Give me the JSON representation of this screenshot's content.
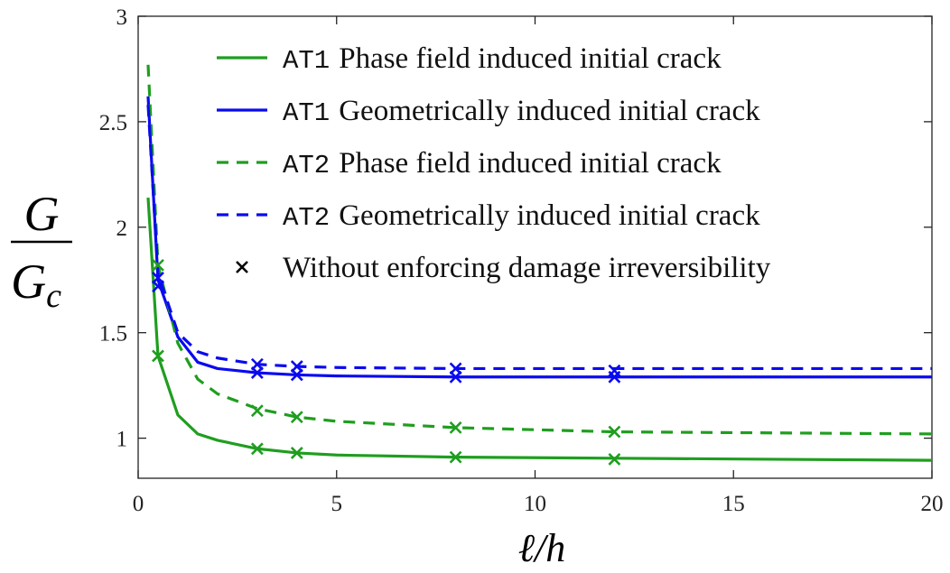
{
  "chart_data": {
    "type": "line",
    "xlabel": "ℓ/h",
    "ylabel_numerator": "G",
    "ylabel_denominator": "G",
    "ylabel_denominator_subscript": "c",
    "x": [
      0.25,
      0.5,
      1,
      1.5,
      2,
      3,
      4,
      5,
      8,
      12,
      20
    ],
    "marker_x": [
      0.5,
      3,
      4,
      8,
      12
    ],
    "marker_legend": {
      "name": "Without enforcing damage irreversibility",
      "color": "#000000"
    },
    "series": [
      {
        "scheme": "AT1",
        "name": "Phase field induced initial crack",
        "color": "#1f9e1f",
        "dashed": false,
        "values": [
          2.14,
          1.39,
          1.11,
          1.02,
          0.99,
          0.95,
          0.93,
          0.92,
          0.91,
          0.905,
          0.895
        ],
        "marker_values": [
          1.39,
          0.95,
          0.93,
          0.91,
          0.9
        ]
      },
      {
        "scheme": "AT1",
        "name": "Geometrically induced initial crack",
        "color": "#0a0af0",
        "dashed": false,
        "values": [
          2.62,
          1.75,
          1.48,
          1.36,
          1.33,
          1.31,
          1.3,
          1.295,
          1.29,
          1.29,
          1.29
        ],
        "marker_values": [
          1.72,
          1.31,
          1.3,
          1.29,
          1.29
        ]
      },
      {
        "scheme": "AT2",
        "name": "Phase field induced initial crack",
        "color": "#1f9e1f",
        "dashed": true,
        "values": [
          2.77,
          1.82,
          1.45,
          1.28,
          1.21,
          1.14,
          1.1,
          1.08,
          1.05,
          1.03,
          1.02
        ],
        "marker_values": [
          1.82,
          1.13,
          1.1,
          1.05,
          1.03
        ]
      },
      {
        "scheme": "AT2",
        "name": "Geometrically induced initial crack",
        "color": "#0a0af0",
        "dashed": true,
        "values": [
          2.58,
          1.78,
          1.5,
          1.41,
          1.38,
          1.35,
          1.34,
          1.335,
          1.33,
          1.33,
          1.33
        ],
        "marker_values": [
          1.76,
          1.35,
          1.34,
          1.33,
          1.32
        ]
      }
    ],
    "xlim": [
      0,
      20
    ],
    "xticks": [
      0,
      5,
      10,
      15,
      20
    ],
    "ylim": [
      0.81,
      3
    ],
    "yticks": [
      1,
      1.5,
      2,
      2.5,
      3
    ],
    "grid": false,
    "legend": "top-right"
  }
}
